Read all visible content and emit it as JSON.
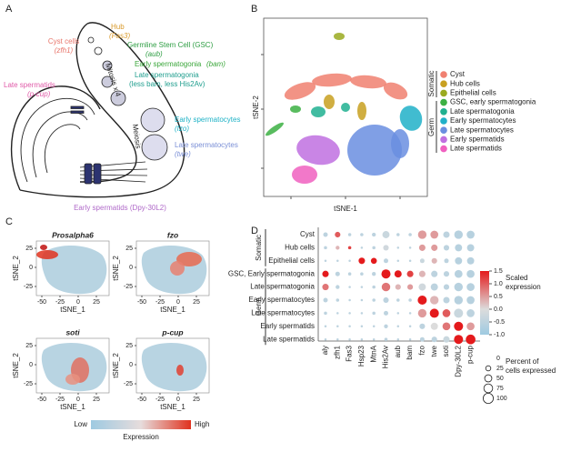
{
  "panel_a": {
    "letter": "A",
    "labels": [
      {
        "text": "Hub",
        "color": "#d99a2b"
      },
      {
        "text": "(Fas3)",
        "color": "#d99a2b",
        "italic": true
      },
      {
        "text": "Germline Stem Cell (GSC)",
        "color": "#2f9e44"
      },
      {
        "text": "(aub)",
        "color": "#2f9e44",
        "italic": true
      },
      {
        "text": "Early spermatogonia",
        "color": "#3aa63a"
      },
      {
        "text": "(bam)",
        "color": "#3aa63a",
        "italic": true
      },
      {
        "text": "Late spermatogonia",
        "color": "#1f9e8e"
      },
      {
        "text": "(less bam, less His2Av)",
        "color": "#1f9e8e"
      },
      {
        "text": "Cyst cells",
        "color": "#e8756a"
      },
      {
        "text": "(zfh1)",
        "color": "#e8756a",
        "italic": true
      },
      {
        "text": "Late spermatids",
        "color": "#e05aa8"
      },
      {
        "text": "(p-cup)",
        "color": "#e05aa8",
        "italic": true
      },
      {
        "text": "Mitosis x 4",
        "color": "#222222"
      },
      {
        "text": "Meiosis",
        "color": "#222222"
      },
      {
        "text": "Early spermatocytes",
        "color": "#1fb2c6"
      },
      {
        "text": "(fzo)",
        "color": "#1fb2c6",
        "italic": true
      },
      {
        "text": "Late spermatocytes",
        "color": "#7a8fd6"
      },
      {
        "text": "(twe)",
        "color": "#7a8fd6",
        "italic": true
      },
      {
        "text": "Early spermatids (Dpy-30L2)",
        "color": "#b06ac9"
      }
    ]
  },
  "panel_b": {
    "letter": "B",
    "x_label": "tSNE-1",
    "y_label": "tSNE-2",
    "groups": [
      "Somatic",
      "Germ"
    ],
    "clusters": [
      {
        "name": "Cyst",
        "color": "#f08070"
      },
      {
        "name": "Hub cells",
        "color": "#c8a020"
      },
      {
        "name": "Epithelial cells",
        "color": "#9aaa20"
      },
      {
        "name": "GSC, early spermatogonia",
        "color": "#3cb043"
      },
      {
        "name": "Late spermatogonia",
        "color": "#20b090"
      },
      {
        "name": "Early spermatocytes",
        "color": "#20b0c8"
      },
      {
        "name": "Late spermatocytes",
        "color": "#6a8ee0"
      },
      {
        "name": "Early spermatids",
        "color": "#c070e0"
      },
      {
        "name": "Late spermatids",
        "color": "#f060c0"
      }
    ]
  },
  "panel_c": {
    "letter": "C",
    "x_label": "tSNE_1",
    "y_label": "tSNE_2",
    "genes": [
      "Prosalpha6",
      "fzo",
      "soti",
      "p-cup"
    ],
    "xticks": [
      -50,
      -25,
      0,
      25
    ],
    "yticks": [
      25,
      0,
      -25
    ],
    "legend_low": "Low",
    "legend_high": "High",
    "legend_title": "Expression"
  },
  "panel_d": {
    "letter": "D",
    "genes": [
      "aly",
      "zfh1",
      "Fas3",
      "Hsp23",
      "MtnA",
      "His2Av",
      "aub",
      "bam",
      "fzo",
      "twe",
      "soti",
      "Dpy-30L2",
      "p-cup"
    ],
    "cell_types": [
      "Cyst",
      "Hub cells",
      "Epithelial cells",
      "GSC, Early spermatogonia",
      "Late spermatogonia",
      "Early spermatocytes",
      "Late spermatocytes",
      "Early spermatids",
      "Late spermatids"
    ],
    "groups": [
      "Somatic",
      "Germ"
    ],
    "expression": [
      [
        -0.5,
        1.0,
        -0.5,
        -0.5,
        -0.5,
        -0.3,
        -0.5,
        -0.5,
        0.5,
        0.5,
        -0.5,
        -0.6,
        -0.6
      ],
      [
        -0.5,
        0.3,
        1.2,
        -0.5,
        -0.5,
        -0.2,
        -0.5,
        -0.5,
        0.5,
        0.5,
        -0.5,
        -0.6,
        -0.6
      ],
      [
        -0.5,
        -0.5,
        -0.5,
        1.5,
        1.5,
        -0.5,
        -0.5,
        -0.5,
        -0.3,
        0.3,
        -0.5,
        -0.6,
        -0.6
      ],
      [
        1.5,
        -0.5,
        -0.5,
        -0.5,
        -0.5,
        1.5,
        1.5,
        1.2,
        0.3,
        -0.5,
        -0.5,
        -0.6,
        -0.6
      ],
      [
        0.8,
        -0.5,
        -0.5,
        -0.5,
        -0.5,
        0.8,
        0.3,
        0.5,
        -0.2,
        -0.5,
        -0.5,
        -0.6,
        -0.6
      ],
      [
        -0.5,
        -0.5,
        -0.5,
        -0.5,
        -0.5,
        -0.5,
        -0.5,
        -0.5,
        1.5,
        0.3,
        -0.5,
        -0.6,
        -0.6
      ],
      [
        -0.5,
        -0.5,
        -0.5,
        -0.5,
        -0.5,
        -0.5,
        -0.5,
        -0.5,
        0.5,
        1.5,
        1.0,
        -0.3,
        -0.5
      ],
      [
        -0.5,
        -0.5,
        -0.5,
        -0.5,
        -0.5,
        -0.5,
        -0.5,
        -0.5,
        -0.5,
        0.0,
        0.8,
        1.5,
        0.5
      ],
      [
        -0.5,
        -0.5,
        -0.5,
        -0.5,
        -0.5,
        -0.5,
        -0.5,
        -0.5,
        -0.5,
        -0.5,
        -0.3,
        1.5,
        1.5
      ]
    ],
    "percent": [
      [
        20,
        30,
        10,
        10,
        15,
        50,
        10,
        10,
        70,
        60,
        40,
        70,
        60
      ],
      [
        10,
        15,
        10,
        5,
        10,
        30,
        5,
        5,
        40,
        40,
        30,
        50,
        50
      ],
      [
        5,
        5,
        5,
        40,
        35,
        20,
        5,
        5,
        20,
        30,
        20,
        50,
        50
      ],
      [
        40,
        20,
        10,
        10,
        15,
        80,
        50,
        40,
        40,
        40,
        30,
        60,
        60
      ],
      [
        40,
        15,
        5,
        5,
        10,
        70,
        30,
        30,
        50,
        50,
        30,
        70,
        60
      ],
      [
        20,
        10,
        5,
        5,
        10,
        30,
        10,
        10,
        80,
        70,
        40,
        70,
        60
      ],
      [
        10,
        5,
        5,
        5,
        10,
        20,
        5,
        5,
        70,
        80,
        60,
        80,
        60
      ],
      [
        5,
        5,
        5,
        5,
        5,
        15,
        5,
        5,
        30,
        50,
        60,
        80,
        60
      ],
      [
        5,
        5,
        5,
        5,
        5,
        10,
        5,
        5,
        20,
        30,
        40,
        80,
        90
      ]
    ],
    "color_title": [
      "Scaled",
      "expression"
    ],
    "color_range": [
      -1,
      1.5
    ],
    "color_ticks": [
      1.5,
      {
        "value": 1,
        "label": "1.0"
      },
      0.5,
      {
        "value": 0,
        "label": "0.0"
      },
      -0.5,
      {
        "value": -1,
        "label": "-1.0"
      }
    ],
    "size_title": [
      "Percent of",
      "cells expressed"
    ],
    "size_ticks": [
      0,
      25,
      50,
      75,
      100
    ]
  }
}
